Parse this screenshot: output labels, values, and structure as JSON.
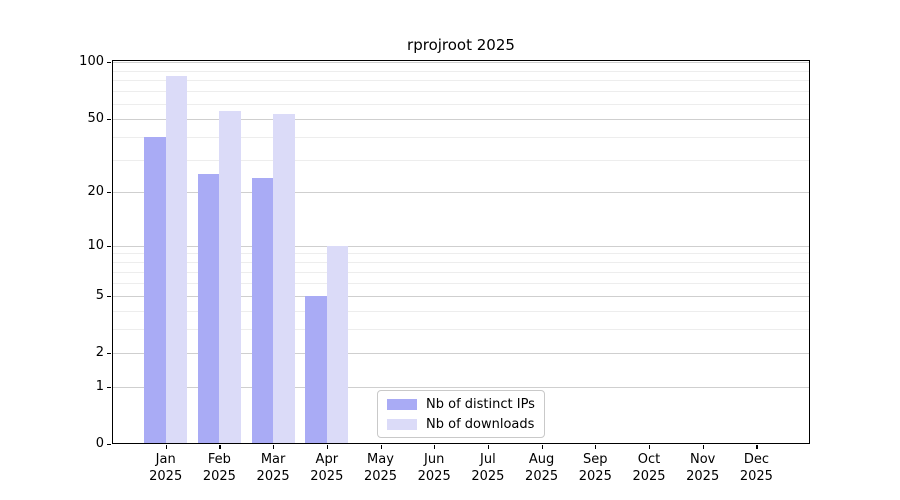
{
  "chart_data": {
    "type": "bar",
    "title": "rprojroot 2025",
    "categories": [
      "Jan",
      "Feb",
      "Mar",
      "Apr",
      "May",
      "Jun",
      "Jul",
      "Aug",
      "Sep",
      "Oct",
      "Nov",
      "Dec"
    ],
    "x_tick_second_line": "2025",
    "series": [
      {
        "name": "Nb of distinct IPs",
        "color": "#a9abf5",
        "values": [
          40,
          25,
          24,
          5,
          0,
          0,
          0,
          0,
          0,
          0,
          0,
          0
        ]
      },
      {
        "name": "Nb of downloads",
        "color": "#dbdbf8",
        "values": [
          84,
          55,
          53,
          10,
          0,
          0,
          0,
          0,
          0,
          0,
          0,
          0
        ]
      }
    ],
    "xlabel": "",
    "ylabel": "",
    "ylim": [
      0,
      100
    ],
    "yscale": "log1p",
    "y_major_ticks": [
      0,
      1,
      2,
      5,
      10,
      20,
      50,
      100
    ],
    "y_minor_ticks": [
      3,
      4,
      6,
      7,
      8,
      9,
      30,
      40,
      60,
      70,
      80,
      90
    ],
    "grid": "horizontal, major and minor",
    "legend_position": "inside bottom-center",
    "bar_colors": {
      "distinct_ips": "#a9abf5",
      "downloads": "#dbdbf8"
    }
  }
}
